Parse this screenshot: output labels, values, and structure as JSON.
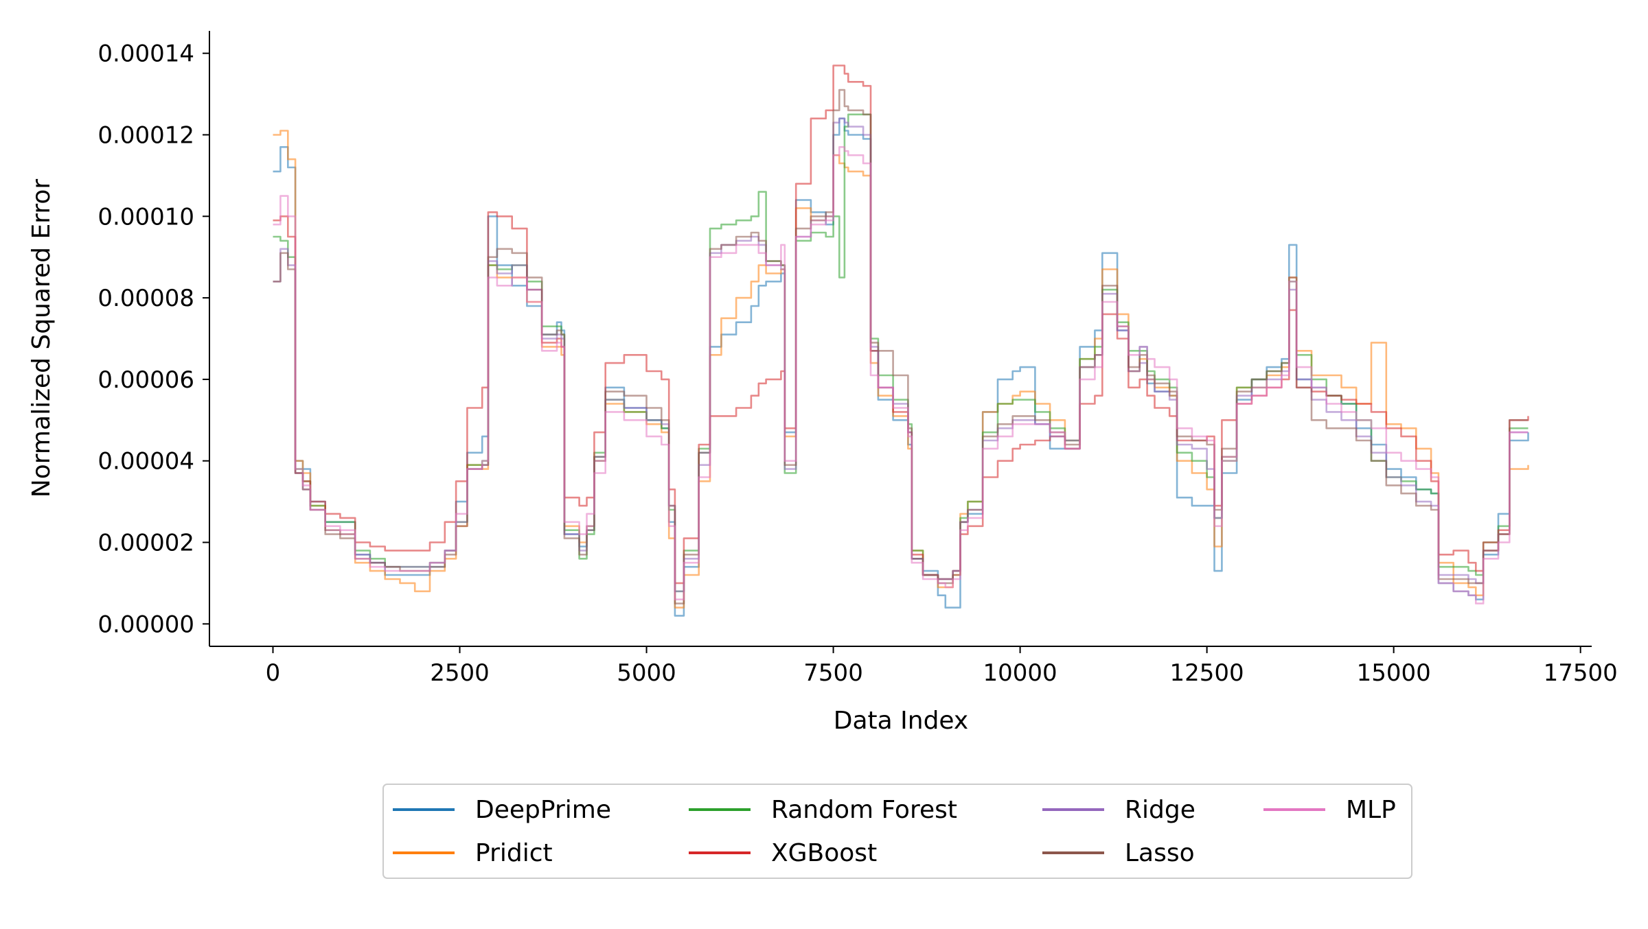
{
  "chart_data": {
    "type": "line",
    "xlabel": "Data Index",
    "ylabel": "Normalized Squared Error",
    "xlim": [
      -850,
      17650
    ],
    "ylim": [
      -5.5e-06,
      0.0001455
    ],
    "x_ticks": [
      0,
      2500,
      5000,
      7500,
      10000,
      12500,
      15000,
      17500
    ],
    "x_tick_labels": [
      "0",
      "2500",
      "5000",
      "7500",
      "10000",
      "12500",
      "15000",
      "17500"
    ],
    "y_ticks": [
      0,
      2e-05,
      4e-05,
      6e-05,
      8e-05,
      0.0001,
      0.00012,
      0.00014
    ],
    "y_tick_labels": [
      "0.00000",
      "0.00002",
      "0.00004",
      "0.00006",
      "0.00008",
      "0.00010",
      "0.00012",
      "0.00014"
    ],
    "grid": false,
    "legend_position": "bottom-center, below axes, 4 columns",
    "line_opacity": 0.55,
    "x": [
      0,
      100,
      200,
      300,
      400,
      500,
      700,
      900,
      1100,
      1300,
      1500,
      1700,
      1900,
      2100,
      2300,
      2450,
      2600,
      2800,
      2880,
      3000,
      3200,
      3400,
      3600,
      3800,
      3860,
      3900,
      4100,
      4200,
      4300,
      4450,
      4700,
      5000,
      5200,
      5300,
      5380,
      5500,
      5700,
      5850,
      6000,
      6200,
      6400,
      6500,
      6600,
      6800,
      6850,
      7000,
      7200,
      7400,
      7500,
      7580,
      7650,
      7700,
      7900,
      8000,
      8100,
      8300,
      8500,
      8550,
      8700,
      8900,
      9000,
      9100,
      9200,
      9300,
      9500,
      9700,
      9900,
      10000,
      10200,
      10400,
      10600,
      10800,
      11000,
      11100,
      11300,
      11450,
      11600,
      11700,
      11800,
      12000,
      12100,
      12300,
      12500,
      12600,
      12700,
      12900,
      13100,
      13300,
      13500,
      13600,
      13700,
      13900,
      14100,
      14300,
      14500,
      14700,
      14900,
      15100,
      15300,
      15500,
      15600,
      15800,
      16000,
      16100,
      16200,
      16400,
      16550,
      16800
    ],
    "series": [
      {
        "name": "DeepPrime",
        "color": "#1f77b4",
        "values": [
          0.000111,
          0.000117,
          0.000112,
          4e-05,
          3.8e-05,
          3e-05,
          2.5e-05,
          2.5e-05,
          1.7e-05,
          1.5e-05,
          1.2e-05,
          1.2e-05,
          1.2e-05,
          1.4e-05,
          1.8e-05,
          3e-05,
          4.2e-05,
          4.6e-05,
          0.0001,
          8.8e-05,
          8.3e-05,
          7.8e-05,
          7.1e-05,
          7.4e-05,
          7.2e-05,
          2.2e-05,
          1.9e-05,
          2.3e-05,
          4.1e-05,
          5.8e-05,
          5.3e-05,
          5e-05,
          4.8e-05,
          2.5e-05,
          2e-06,
          1.4e-05,
          4.2e-05,
          6.8e-05,
          7.1e-05,
          7.4e-05,
          7.8e-05,
          8.3e-05,
          8.4e-05,
          8.6e-05,
          4.7e-05,
          0.000104,
          0.000101,
          9.8e-05,
          0.00012,
          0.000124,
          0.000121,
          0.00012,
          0.000119,
          6.7e-05,
          5.5e-05,
          5e-05,
          4.4e-05,
          1.6e-05,
          1.3e-05,
          7e-06,
          4e-06,
          4e-06,
          2.5e-05,
          2.7e-05,
          5.2e-05,
          6e-05,
          6.2e-05,
          6.3e-05,
          4.9e-05,
          4.3e-05,
          4.3e-05,
          6.8e-05,
          7.2e-05,
          9.1e-05,
          7.2e-05,
          6.2e-05,
          6.8e-05,
          5.9e-05,
          5.7e-05,
          5.6e-05,
          3.1e-05,
          2.9e-05,
          2.9e-05,
          1.3e-05,
          3.7e-05,
          5.5e-05,
          6e-05,
          6.3e-05,
          6.5e-05,
          9.3e-05,
          6e-05,
          5.8e-05,
          5.6e-05,
          5.4e-05,
          4.8e-05,
          4.4e-05,
          3.8e-05,
          3.6e-05,
          3.3e-05,
          3.2e-05,
          1e-05,
          8e-06,
          7e-06,
          6e-06,
          1.7e-05,
          2.7e-05,
          4.5e-05,
          4.7e-05
        ]
      },
      {
        "name": "Pridict",
        "color": "#ff7f0e",
        "values": [
          0.00012,
          0.000121,
          0.000114,
          4e-05,
          3.7e-05,
          2.9e-05,
          2.3e-05,
          2.2e-05,
          1.5e-05,
          1.3e-05,
          1.1e-05,
          1e-05,
          8e-06,
          1.3e-05,
          1.6e-05,
          2.4e-05,
          3.9e-05,
          3.8e-05,
          8.8e-05,
          8.5e-05,
          8.5e-05,
          7.9e-05,
          6.8e-05,
          6.8e-05,
          6.6e-05,
          2.4e-05,
          2e-05,
          2.4e-05,
          4e-05,
          5.4e-05,
          5.2e-05,
          4.9e-05,
          4.7e-05,
          2.1e-05,
          4e-06,
          1.2e-05,
          3.5e-05,
          6.6e-05,
          7.5e-05,
          8e-05,
          8.4e-05,
          8.8e-05,
          8.6e-05,
          8.7e-05,
          4.6e-05,
          0.000102,
          9.9e-05,
          0.0001,
          0.000115,
          0.000113,
          0.000112,
          0.000111,
          0.00011,
          6.4e-05,
          5.6e-05,
          5.1e-05,
          4.3e-05,
          1.8e-05,
          1.2e-05,
          9e-06,
          9e-06,
          1.2e-05,
          2.7e-05,
          3e-05,
          5.2e-05,
          5.4e-05,
          5.6e-05,
          5.7e-05,
          5.4e-05,
          5e-05,
          4.5e-05,
          6.5e-05,
          7e-05,
          8.7e-05,
          7.6e-05,
          6.2e-05,
          6.5e-05,
          6e-05,
          5.8e-05,
          5.6e-05,
          4e-05,
          3.7e-05,
          3.3e-05,
          1.9e-05,
          4.1e-05,
          5.8e-05,
          5.8e-05,
          6.1e-05,
          6.3e-05,
          8.5e-05,
          6.7e-05,
          6.1e-05,
          6.1e-05,
          5.8e-05,
          5.4e-05,
          6.9e-05,
          4.9e-05,
          4.8e-05,
          4.3e-05,
          3.7e-05,
          1.5e-05,
          1e-05,
          9e-06,
          7e-06,
          1.8e-05,
          2.2e-05,
          3.8e-05,
          3.9e-05
        ]
      },
      {
        "name": "Random Forest",
        "color": "#2ca02c",
        "values": [
          9.5e-05,
          9.4e-05,
          9e-05,
          3.8e-05,
          3.5e-05,
          2.9e-05,
          2.5e-05,
          2.5e-05,
          1.8e-05,
          1.6e-05,
          1.4e-05,
          1.4e-05,
          1.4e-05,
          1.5e-05,
          1.8e-05,
          2.5e-05,
          3.9e-05,
          4e-05,
          8.8e-05,
          8.7e-05,
          8.8e-05,
          8.4e-05,
          7.3e-05,
          7.3e-05,
          7.1e-05,
          2.3e-05,
          1.6e-05,
          2.2e-05,
          4.2e-05,
          5.5e-05,
          5.2e-05,
          5e-05,
          4.8e-05,
          2.8e-05,
          8e-06,
          1.8e-05,
          4.3e-05,
          9.7e-05,
          9.8e-05,
          9.9e-05,
          0.0001,
          0.000106,
          8.9e-05,
          8.8e-05,
          3.7e-05,
          9.4e-05,
          9.6e-05,
          9.5e-05,
          0.0001,
          8.5e-05,
          0.000122,
          0.000125,
          0.000125,
          7e-05,
          6.1e-05,
          5.5e-05,
          4.9e-05,
          1.8e-05,
          1.2e-05,
          1.1e-05,
          1.1e-05,
          1.3e-05,
          2.6e-05,
          3e-05,
          4.7e-05,
          5.4e-05,
          5.5e-05,
          5.5e-05,
          5.2e-05,
          4.8e-05,
          4.5e-05,
          6.5e-05,
          6.8e-05,
          8.2e-05,
          7.4e-05,
          6.7e-05,
          6.7e-05,
          6.2e-05,
          6e-05,
          5.8e-05,
          4.2e-05,
          4e-05,
          3.6e-05,
          2.6e-05,
          4e-05,
          5.8e-05,
          6e-05,
          6.2e-05,
          6.4e-05,
          8.4e-05,
          6.6e-05,
          6e-05,
          5.6e-05,
          5.4e-05,
          5e-05,
          4e-05,
          3.6e-05,
          3.5e-05,
          3.3e-05,
          3.2e-05,
          1.4e-05,
          1.4e-05,
          1.3e-05,
          1.2e-05,
          2e-05,
          2.4e-05,
          4.8e-05,
          4.8e-05
        ]
      },
      {
        "name": "XGBoost",
        "color": "#d62728",
        "values": [
          9.9e-05,
          0.0001,
          9.5e-05,
          3.7e-05,
          3.5e-05,
          3e-05,
          2.7e-05,
          2.6e-05,
          2e-05,
          1.9e-05,
          1.8e-05,
          1.8e-05,
          1.8e-05,
          2e-05,
          2.5e-05,
          3.5e-05,
          5.3e-05,
          5.8e-05,
          0.000101,
          0.0001,
          9.7e-05,
          8.2e-05,
          6.9e-05,
          7e-05,
          6.8e-05,
          3.1e-05,
          2.9e-05,
          3.1e-05,
          4.7e-05,
          6.4e-05,
          6.6e-05,
          6.2e-05,
          6e-05,
          3.3e-05,
          1e-05,
          2.1e-05,
          4.4e-05,
          5.1e-05,
          5.1e-05,
          5.3e-05,
          5.6e-05,
          5.9e-05,
          6e-05,
          6.2e-05,
          4.8e-05,
          0.000108,
          0.000124,
          0.000126,
          0.000137,
          0.000137,
          0.000135,
          0.000133,
          0.000132,
          6.7e-05,
          5.8e-05,
          5.2e-05,
          4.7e-05,
          1.7e-05,
          1.2e-05,
          1.1e-05,
          1.1e-05,
          1.3e-05,
          2.2e-05,
          2.4e-05,
          3.6e-05,
          4e-05,
          4.3e-05,
          4.4e-05,
          4.5e-05,
          4.6e-05,
          4.3e-05,
          5.4e-05,
          5.6e-05,
          7.6e-05,
          7e-05,
          5.8e-05,
          6e-05,
          5.6e-05,
          5.3e-05,
          5.1e-05,
          4.5e-05,
          4.5e-05,
          4.6e-05,
          2.9e-05,
          5e-05,
          5.4e-05,
          5.6e-05,
          5.8e-05,
          6e-05,
          7.7e-05,
          5.8e-05,
          5.7e-05,
          5.6e-05,
          5.5e-05,
          5.4e-05,
          5.2e-05,
          4.8e-05,
          4.6e-05,
          4e-05,
          3.5e-05,
          1.7e-05,
          1.8e-05,
          1.5e-05,
          1.3e-05,
          2e-05,
          2.3e-05,
          5e-05,
          5.1e-05
        ]
      },
      {
        "name": "Ridge",
        "color": "#9467bd",
        "values": [
          8.4e-05,
          9.2e-05,
          8.8e-05,
          3.7e-05,
          3.3e-05,
          2.8e-05,
          2.3e-05,
          2.2e-05,
          1.7e-05,
          1.5e-05,
          1.4e-05,
          1.4e-05,
          1.4e-05,
          1.5e-05,
          1.8e-05,
          2.5e-05,
          3.8e-05,
          3.9e-05,
          8.9e-05,
          8.6e-05,
          8.8e-05,
          8.2e-05,
          7e-05,
          7.1e-05,
          7e-05,
          2.2e-05,
          1.8e-05,
          2.4e-05,
          4e-05,
          5.5e-05,
          5.3e-05,
          5e-05,
          4.9e-05,
          2.9e-05,
          8e-06,
          1.6e-05,
          3.9e-05,
          9.1e-05,
          9.3e-05,
          9.4e-05,
          9.5e-05,
          9.3e-05,
          8.8e-05,
          8.7e-05,
          3.8e-05,
          9.5e-05,
          9.9e-05,
          0.0001,
          0.000123,
          0.000124,
          0.000123,
          0.000122,
          0.00012,
          6.8e-05,
          5.8e-05,
          5.4e-05,
          4.7e-05,
          1.6e-05,
          1.2e-05,
          1.1e-05,
          1.1e-05,
          1.3e-05,
          2.5e-05,
          2.8e-05,
          4.5e-05,
          4.8e-05,
          5e-05,
          5e-05,
          4.9e-05,
          4.6e-05,
          4.5e-05,
          6.3e-05,
          6.6e-05,
          8.1e-05,
          7.2e-05,
          6.2e-05,
          6.4e-05,
          6e-05,
          5.7e-05,
          5.5e-05,
          4.4e-05,
          4.3e-05,
          3.8e-05,
          2.6e-05,
          4.1e-05,
          5.6e-05,
          5.8e-05,
          6e-05,
          6.2e-05,
          8.2e-05,
          6e-05,
          5.5e-05,
          5.2e-05,
          5e-05,
          4.6e-05,
          4.2e-05,
          3.6e-05,
          3.4e-05,
          3e-05,
          2.9e-05,
          1.2e-05,
          1.2e-05,
          1.1e-05,
          1e-05,
          1.8e-05,
          2.2e-05,
          4.7e-05,
          4.7e-05
        ]
      },
      {
        "name": "Lasso",
        "color": "#8c564b",
        "values": [
          8.4e-05,
          9.1e-05,
          8.7e-05,
          3.7e-05,
          3.3e-05,
          2.8e-05,
          2.2e-05,
          2.1e-05,
          1.6e-05,
          1.5e-05,
          1.4e-05,
          1.3e-05,
          1.3e-05,
          1.4e-05,
          1.7e-05,
          2.4e-05,
          3.8e-05,
          3.9e-05,
          9e-05,
          9.2e-05,
          9.1e-05,
          8.5e-05,
          7.1e-05,
          7.2e-05,
          7.1e-05,
          2.1e-05,
          1.7e-05,
          2.3e-05,
          4.1e-05,
          5.7e-05,
          5.6e-05,
          5.3e-05,
          5e-05,
          2.9e-05,
          5e-06,
          1.7e-05,
          4.2e-05,
          9.2e-05,
          9.3e-05,
          9.5e-05,
          9.6e-05,
          9.4e-05,
          8.9e-05,
          8.8e-05,
          3.9e-05,
          9.7e-05,
          0.0001,
          0.000101,
          0.000126,
          0.000131,
          0.000127,
          0.000126,
          0.000125,
          6.9e-05,
          6.7e-05,
          6.1e-05,
          4.8e-05,
          1.6e-05,
          1.2e-05,
          1e-05,
          1e-05,
          1.2e-05,
          2.5e-05,
          2.8e-05,
          4.6e-05,
          4.9e-05,
          5.1e-05,
          5.1e-05,
          5e-05,
          4.7e-05,
          4.4e-05,
          6.3e-05,
          6.6e-05,
          8.3e-05,
          7.3e-05,
          6.3e-05,
          6.6e-05,
          6.1e-05,
          5.9e-05,
          5.7e-05,
          4.6e-05,
          4.5e-05,
          4.4e-05,
          2.8e-05,
          4.3e-05,
          5.7e-05,
          6e-05,
          6.2e-05,
          6.4e-05,
          8.5e-05,
          5.8e-05,
          5e-05,
          4.8e-05,
          4.8e-05,
          4.5e-05,
          4e-05,
          3.4e-05,
          3.2e-05,
          2.9e-05,
          2.8e-05,
          1.1e-05,
          1.1e-05,
          1e-05,
          1e-05,
          1.8e-05,
          2.2e-05,
          5e-05,
          5e-05
        ]
      },
      {
        "name": "MLP",
        "color": "#e377c2",
        "values": [
          9.8e-05,
          0.000105,
          0.0001,
          3.8e-05,
          3.4e-05,
          2.8e-05,
          2.4e-05,
          2.3e-05,
          1.6e-05,
          1.4e-05,
          1.3e-05,
          1.3e-05,
          1.3e-05,
          1.5e-05,
          1.8e-05,
          2.7e-05,
          3.8e-05,
          4e-05,
          8.5e-05,
          8.3e-05,
          8.5e-05,
          7.9e-05,
          6.7e-05,
          6.9e-05,
          6.8e-05,
          2.5e-05,
          2.2e-05,
          2.7e-05,
          3.7e-05,
          5.2e-05,
          5e-05,
          4.6e-05,
          4.4e-05,
          2.4e-05,
          6e-06,
          1.5e-05,
          3.6e-05,
          9e-05,
          9.1e-05,
          9.3e-05,
          9.3e-05,
          9.1e-05,
          8.8e-05,
          9.3e-05,
          4e-05,
          9.5e-05,
          9.8e-05,
          9.9e-05,
          0.000115,
          0.000117,
          0.000116,
          0.000115,
          0.000113,
          6.1e-05,
          5.8e-05,
          5.3e-05,
          4.6e-05,
          1.5e-05,
          1.1e-05,
          1e-05,
          9e-06,
          1.1e-05,
          2.3e-05,
          2.6e-05,
          4.3e-05,
          4.6e-05,
          4.9e-05,
          4.9e-05,
          4.9e-05,
          4.7e-05,
          4.3e-05,
          6e-05,
          6.3e-05,
          7.9e-05,
          7.3e-05,
          6.6e-05,
          6.8e-05,
          6.5e-05,
          6.3e-05,
          6e-05,
          4.8e-05,
          4.6e-05,
          4.5e-05,
          2.4e-05,
          4e-05,
          5.4e-05,
          5.6e-05,
          5.8e-05,
          6.1e-05,
          8.4e-05,
          6.3e-05,
          5.8e-05,
          5.4e-05,
          5.2e-05,
          5e-05,
          4.8e-05,
          4.2e-05,
          4e-05,
          3.8e-05,
          3.6e-05,
          1e-05,
          8e-06,
          7e-06,
          5e-06,
          1.6e-05,
          2e-05,
          4.7e-05,
          4.7e-05
        ]
      }
    ]
  }
}
